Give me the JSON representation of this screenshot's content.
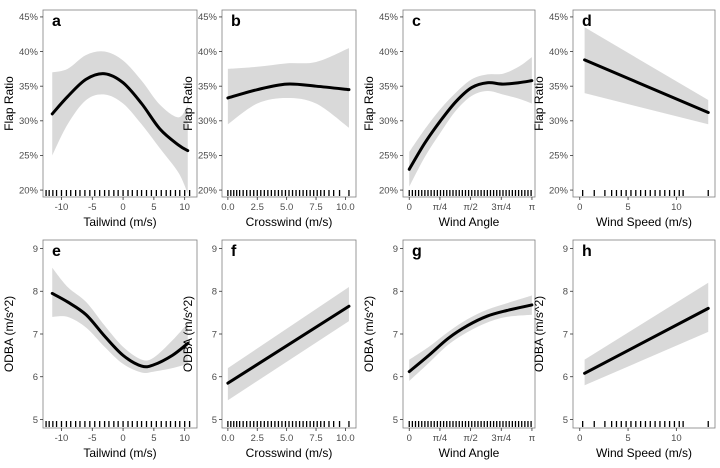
{
  "style": {
    "line_color": "#000000",
    "ribbon_color": "#d9d9d9",
    "frame_color": "#7f7f7f",
    "rug_color": "#000000"
  },
  "chart_data": [
    {
      "type": "line",
      "panel": "a",
      "xlabel": "Tailwind (m/s)",
      "ylabel": "Flap Ratio",
      "xlim": [
        -13,
        12
      ],
      "ylim": [
        19,
        46
      ],
      "xticks": [
        -10,
        -5,
        0,
        5,
        10
      ],
      "xtick_labels": [
        "-10",
        "-5",
        "0",
        "5",
        "10"
      ],
      "yticks": [
        20,
        25,
        30,
        35,
        40,
        45
      ],
      "ytick_labels": [
        "20%",
        "25%",
        "30%",
        "35%",
        "40%",
        "45%"
      ],
      "x": [
        -11.5,
        -9,
        -6,
        -3,
        0,
        3,
        6,
        9,
        10.5
      ],
      "y": [
        31,
        33.5,
        36,
        36.8,
        35.5,
        32.5,
        28.8,
        26.5,
        25.7
      ],
      "lower": [
        25,
        29.5,
        33,
        33.8,
        32.5,
        29.5,
        26,
        22.5,
        19.5
      ],
      "upper": [
        37,
        37.5,
        39.5,
        40,
        38.7,
        35.8,
        32.3,
        30.5,
        32.3
      ],
      "rug": [
        -12.5,
        -12,
        -11.4,
        -10.8,
        -10,
        -9.2,
        -8.5,
        -7.7,
        -7,
        -6.2,
        -5.4,
        -4.6,
        -3.8,
        -3,
        -2.3,
        -1.5,
        -0.8,
        0,
        0.8,
        1.5,
        2.3,
        3,
        3.8,
        4.6,
        5.4,
        6.2,
        7,
        7.7,
        8.5,
        9.2,
        10,
        10.8
      ]
    },
    {
      "type": "line",
      "panel": "b",
      "xlabel": "Crosswind (m/s)",
      "ylabel": "Flap Ratio",
      "xlim": [
        -0.5,
        10.9
      ],
      "ylim": [
        19,
        46
      ],
      "xticks": [
        0,
        2.5,
        5,
        7.5,
        10
      ],
      "xtick_labels": [
        "0.0",
        "2.5",
        "5.0",
        "7.5",
        "10.0"
      ],
      "yticks": [
        20,
        25,
        30,
        35,
        40,
        45
      ],
      "ytick_labels": [
        "20%",
        "25%",
        "30%",
        "35%",
        "40%",
        "45%"
      ],
      "x": [
        0,
        2.5,
        5,
        7.5,
        10.3
      ],
      "y": [
        33.3,
        34.5,
        35.3,
        35,
        34.5
      ],
      "lower": [
        29.5,
        32.5,
        33.3,
        32.5,
        29
      ],
      "upper": [
        37.5,
        37.8,
        38.3,
        38.5,
        40.5
      ],
      "rug": [
        0,
        0.25,
        0.5,
        0.75,
        1,
        1.3,
        1.6,
        1.9,
        2.2,
        2.5,
        2.8,
        3.1,
        3.4,
        3.7,
        4,
        4.3,
        4.6,
        4.9,
        5.2,
        5.5,
        5.8,
        6.1,
        6.4,
        6.7,
        7,
        7.3,
        7.6,
        7.9,
        8.2,
        8.6,
        9,
        9.5,
        10.3
      ]
    },
    {
      "type": "line",
      "panel": "c",
      "xlabel": "Wind Angle",
      "ylabel": "Flap Ratio",
      "xlim": [
        -0.16,
        3.22
      ],
      "ylim": [
        19,
        46
      ],
      "xticks": [
        0,
        0.7854,
        1.5708,
        2.3562,
        3.1416
      ],
      "xtick_labels": [
        "0",
        "π/4",
        "π/2",
        "3π/4",
        "π"
      ],
      "yticks": [
        20,
        25,
        30,
        35,
        40,
        45
      ],
      "ytick_labels": [
        "20%",
        "25%",
        "30%",
        "35%",
        "40%",
        "45%"
      ],
      "x": [
        0,
        0.4,
        0.8,
        1.2,
        1.6,
        2.0,
        2.4,
        2.8,
        3.14
      ],
      "y": [
        23,
        26.8,
        30,
        32.8,
        34.8,
        35.5,
        35.3,
        35.5,
        35.8
      ],
      "lower": [
        20.5,
        24.8,
        28.3,
        31.5,
        33.6,
        34.3,
        33.8,
        33.2,
        32.5
      ],
      "upper": [
        25.5,
        28.8,
        31.7,
        34.1,
        36,
        36.7,
        36.8,
        37.8,
        39.2
      ],
      "rug": [
        0,
        0.08,
        0.16,
        0.24,
        0.32,
        0.4,
        0.48,
        0.56,
        0.64,
        0.72,
        0.8,
        0.88,
        0.96,
        1.04,
        1.12,
        1.2,
        1.28,
        1.36,
        1.44,
        1.52,
        1.6,
        1.68,
        1.76,
        1.84,
        1.92,
        2.0,
        2.08,
        2.16,
        2.24,
        2.32,
        2.4,
        2.48,
        2.56,
        2.64,
        2.72,
        2.8,
        2.88,
        2.96,
        3.04,
        3.12
      ]
    },
    {
      "type": "line",
      "panel": "d",
      "xlabel": "Wind Speed (m/s)",
      "ylabel": "Flap Ratio",
      "xlim": [
        -0.7,
        14
      ],
      "ylim": [
        19,
        46
      ],
      "xticks": [
        0,
        5,
        10
      ],
      "xtick_labels": [
        "0",
        "5",
        "10"
      ],
      "yticks": [
        20,
        25,
        30,
        35,
        40,
        45
      ],
      "ytick_labels": [
        "20%",
        "25%",
        "30%",
        "35%",
        "40%",
        "45%"
      ],
      "x": [
        0.5,
        13.3
      ],
      "y": [
        38.8,
        31.2
      ],
      "lower": [
        34,
        29.5
      ],
      "upper": [
        43.5,
        33
      ],
      "rug": [
        0.3,
        1.5,
        2.6,
        3.3,
        3.8,
        4.3,
        4.8,
        5.3,
        5.8,
        6.3,
        6.8,
        7.3,
        7.8,
        8.3,
        8.8,
        9.3,
        9.8,
        10.3,
        10.7,
        13.3
      ]
    },
    {
      "type": "line",
      "panel": "e",
      "xlabel": "Tailwind (m/s)",
      "ylabel": "ODBA (m/s^2)",
      "xlim": [
        -13,
        12
      ],
      "ylim": [
        4.8,
        9.2
      ],
      "xticks": [
        -10,
        -5,
        0,
        5,
        10
      ],
      "xtick_labels": [
        "-10",
        "-5",
        "0",
        "5",
        "10"
      ],
      "yticks": [
        5,
        6,
        7,
        8,
        9
      ],
      "ytick_labels": [
        "5",
        "6",
        "7",
        "8",
        "9"
      ],
      "x": [
        -11.5,
        -9,
        -6,
        -3,
        0,
        3,
        5,
        8,
        10.5
      ],
      "y": [
        7.95,
        7.75,
        7.45,
        6.95,
        6.5,
        6.25,
        6.28,
        6.5,
        6.78
      ],
      "lower": [
        7.4,
        7.4,
        7.15,
        6.7,
        6.3,
        6.1,
        6.12,
        6.2,
        6.3
      ],
      "upper": [
        8.55,
        8.1,
        7.75,
        7.2,
        6.7,
        6.4,
        6.45,
        6.85,
        7.25
      ],
      "rug": [
        -12.5,
        -12,
        -11.4,
        -10.8,
        -10,
        -9.2,
        -8.5,
        -7.7,
        -7,
        -6.2,
        -5.4,
        -4.6,
        -3.8,
        -3,
        -2.3,
        -1.5,
        -0.8,
        0,
        0.8,
        1.5,
        2.3,
        3,
        3.8,
        4.6,
        5.4,
        6.2,
        7,
        7.7,
        8.5,
        9.2,
        10,
        10.8
      ]
    },
    {
      "type": "line",
      "panel": "f",
      "xlabel": "Crosswind (m/s)",
      "ylabel": "ODBA (m/s^2)",
      "xlim": [
        -0.5,
        10.9
      ],
      "ylim": [
        4.8,
        9.2
      ],
      "xticks": [
        0,
        2.5,
        5,
        7.5,
        10
      ],
      "xtick_labels": [
        "0.0",
        "2.5",
        "5.0",
        "7.5",
        "10.0"
      ],
      "yticks": [
        5,
        6,
        7,
        8,
        9
      ],
      "ytick_labels": [
        "5",
        "6",
        "7",
        "8",
        "9"
      ],
      "x": [
        0,
        10.3
      ],
      "y": [
        5.85,
        7.65
      ],
      "lower": [
        5.45,
        7.3
      ],
      "upper": [
        6.2,
        8.1
      ],
      "rug": [
        0,
        0.25,
        0.5,
        0.75,
        1,
        1.3,
        1.6,
        1.9,
        2.2,
        2.5,
        2.8,
        3.1,
        3.4,
        3.7,
        4,
        4.3,
        4.6,
        4.9,
        5.2,
        5.5,
        5.8,
        6.1,
        6.4,
        6.7,
        7,
        7.3,
        7.6,
        7.9,
        8.2,
        8.6,
        9,
        9.5,
        10.3
      ]
    },
    {
      "type": "line",
      "panel": "g",
      "xlabel": "Wind Angle",
      "ylabel": "ODBA (m/s^2)",
      "xlim": [
        -0.16,
        3.22
      ],
      "ylim": [
        4.8,
        9.2
      ],
      "xticks": [
        0,
        0.7854,
        1.5708,
        2.3562,
        3.1416
      ],
      "xtick_labels": [
        "0",
        "π/4",
        "π/2",
        "3π/4",
        "π"
      ],
      "yticks": [
        5,
        6,
        7,
        8,
        9
      ],
      "ytick_labels": [
        "5",
        "6",
        "7",
        "8",
        "9"
      ],
      "x": [
        0,
        0.5,
        1.0,
        1.5,
        2.0,
        2.5,
        3.14
      ],
      "y": [
        6.12,
        6.5,
        6.9,
        7.2,
        7.42,
        7.55,
        7.68
      ],
      "lower": [
        5.9,
        6.32,
        6.75,
        7.05,
        7.27,
        7.4,
        7.45
      ],
      "upper": [
        6.4,
        6.7,
        7.05,
        7.35,
        7.57,
        7.72,
        7.9
      ],
      "rug": [
        0,
        0.08,
        0.16,
        0.24,
        0.32,
        0.4,
        0.48,
        0.56,
        0.64,
        0.72,
        0.8,
        0.88,
        0.96,
        1.04,
        1.12,
        1.2,
        1.28,
        1.36,
        1.44,
        1.52,
        1.6,
        1.68,
        1.76,
        1.84,
        1.92,
        2.0,
        2.08,
        2.16,
        2.24,
        2.32,
        2.4,
        2.48,
        2.56,
        2.64,
        2.72,
        2.8,
        2.88,
        2.96,
        3.04,
        3.12
      ]
    },
    {
      "type": "line",
      "panel": "h",
      "xlabel": "Wind Speed (m/s)",
      "ylabel": "ODBA (m/s^2)",
      "xlim": [
        -0.7,
        14
      ],
      "ylim": [
        4.8,
        9.2
      ],
      "xticks": [
        0,
        5,
        10
      ],
      "xtick_labels": [
        "0",
        "5",
        "10"
      ],
      "yticks": [
        5,
        6,
        7,
        8,
        9
      ],
      "ytick_labels": [
        "5",
        "6",
        "7",
        "8",
        "9"
      ],
      "x": [
        0.5,
        13.3
      ],
      "y": [
        6.08,
        7.6
      ],
      "lower": [
        5.8,
        7.05
      ],
      "upper": [
        6.4,
        8.2
      ],
      "rug": [
        0.3,
        1.5,
        2.6,
        3.3,
        3.8,
        4.3,
        4.8,
        5.3,
        5.8,
        6.3,
        6.8,
        7.3,
        7.8,
        8.3,
        8.8,
        9.3,
        9.8,
        10.3,
        10.7,
        13.3
      ]
    }
  ]
}
